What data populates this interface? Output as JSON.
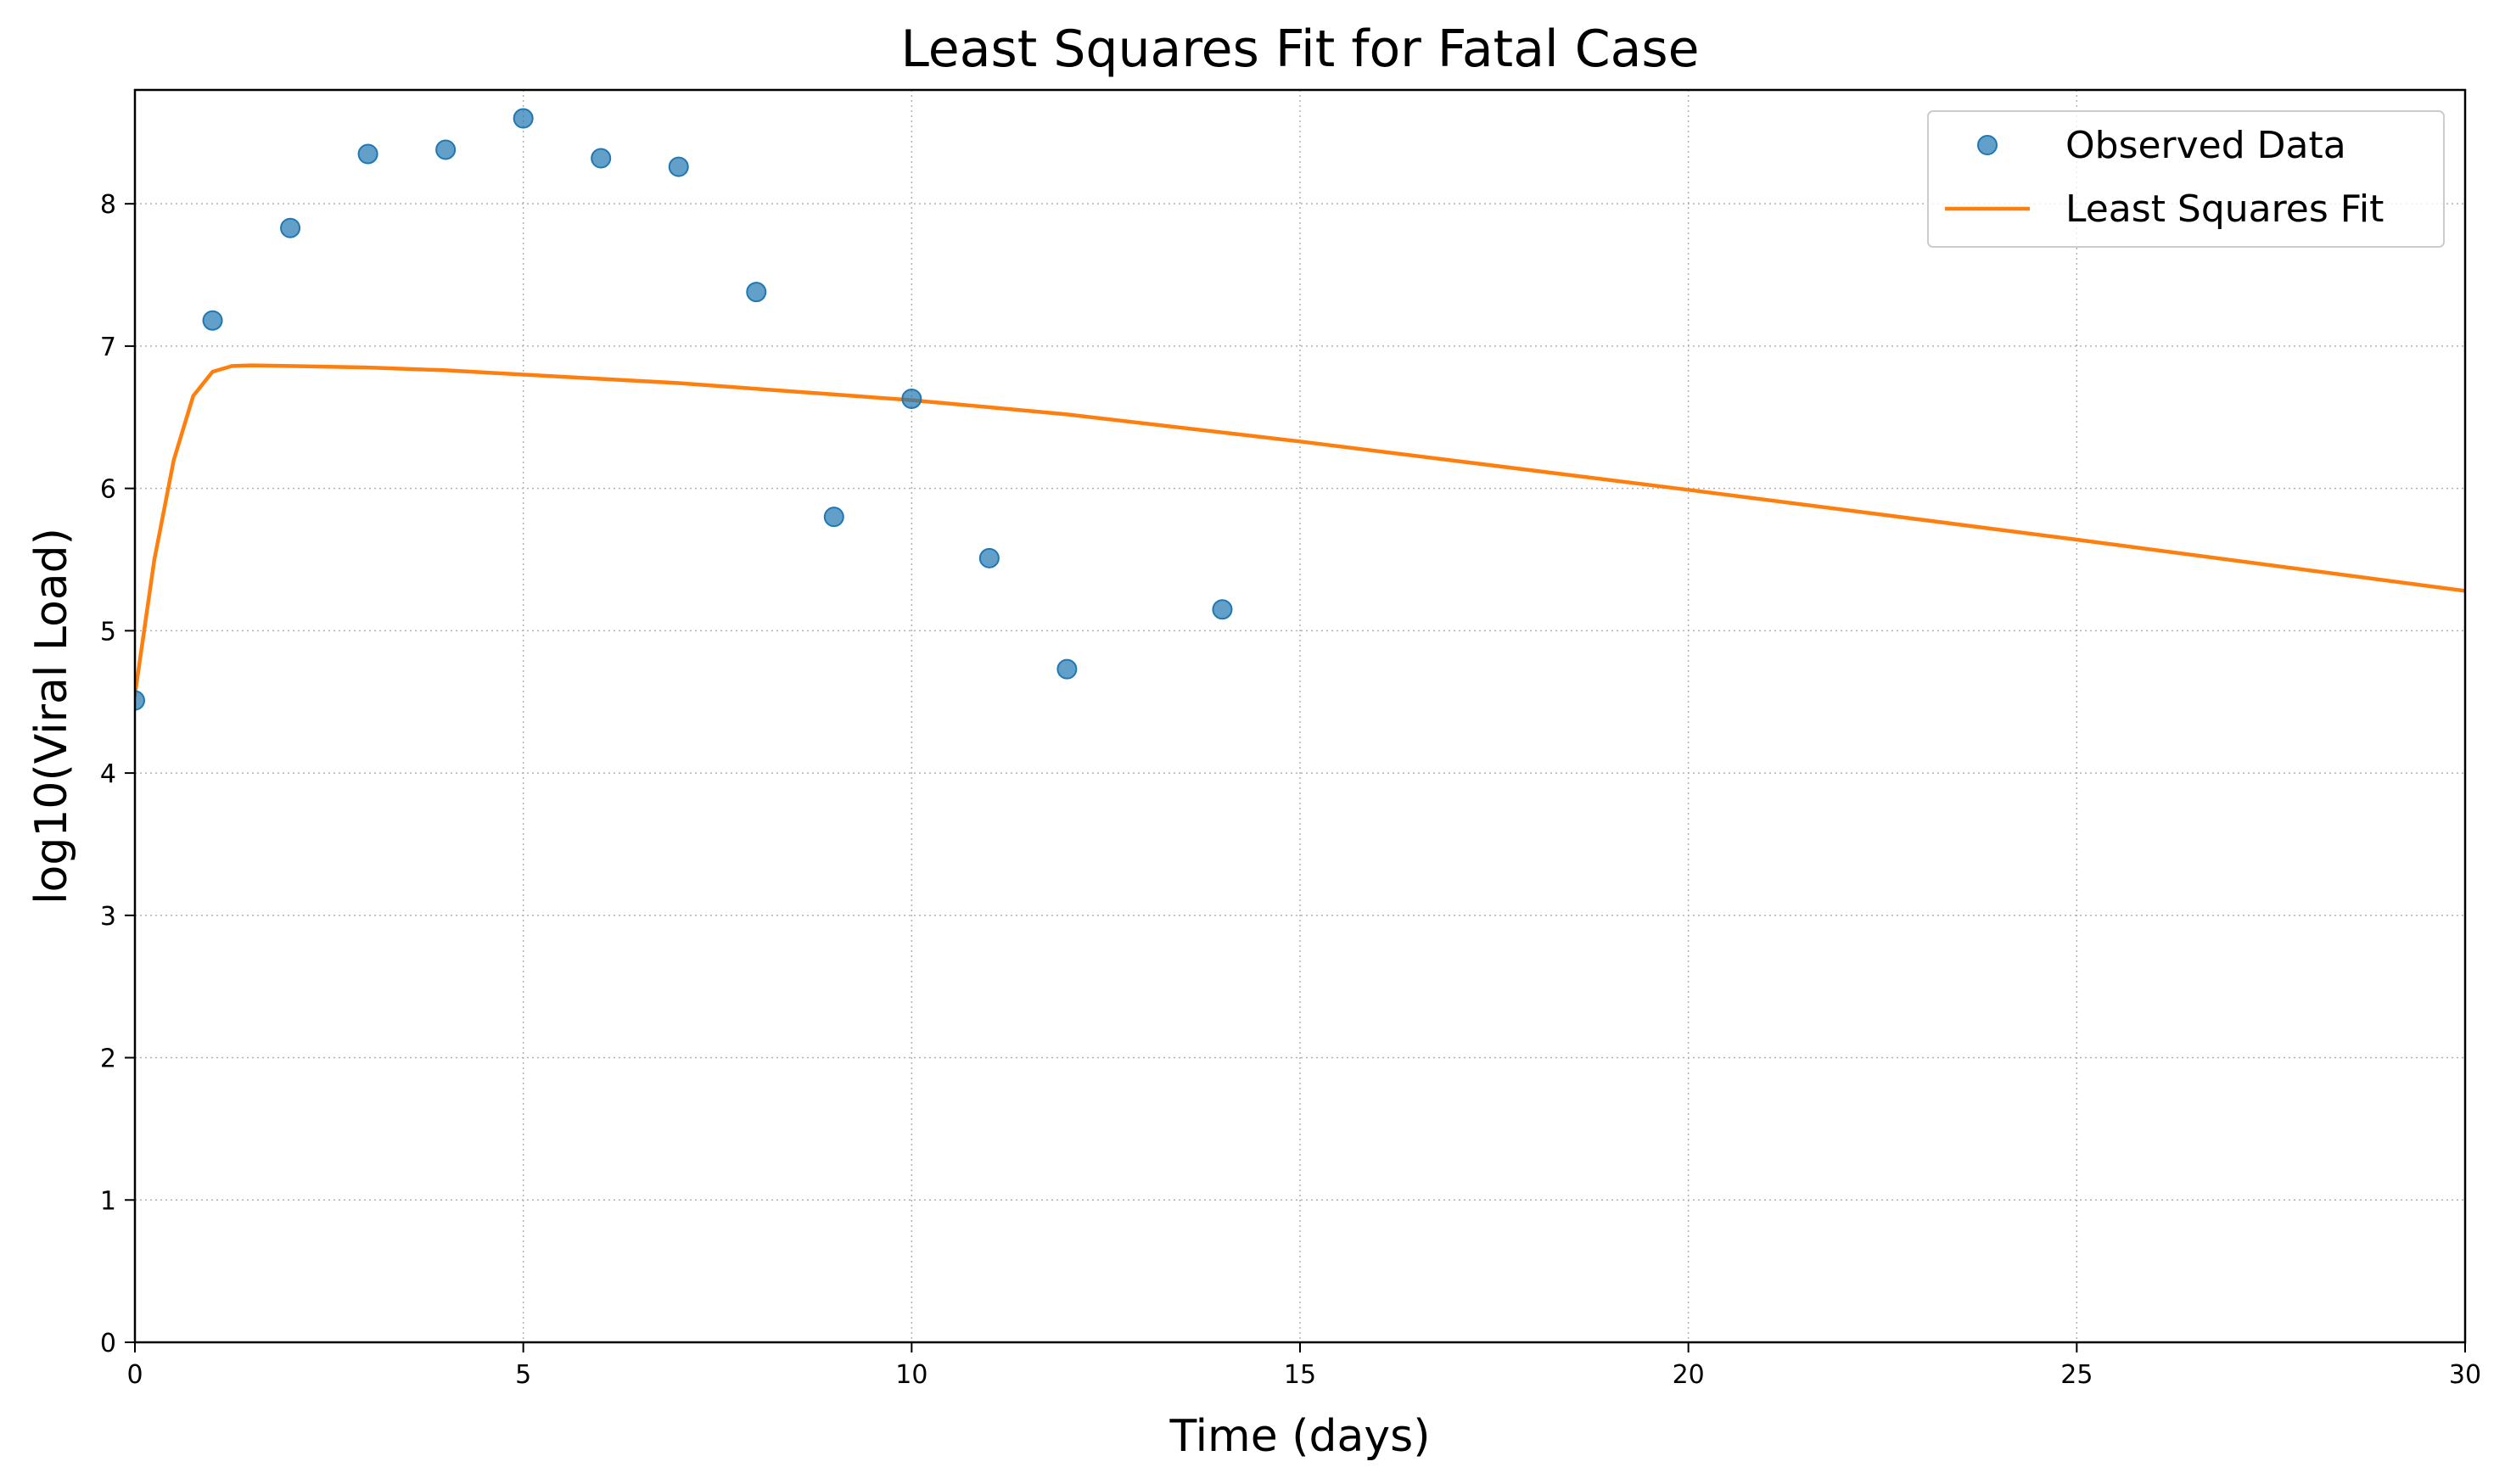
{
  "chart_data": {
    "type": "scatter",
    "title": "Least Squares Fit for Fatal Case",
    "xlabel": "Time (days)",
    "ylabel": "log10(Viral Load)",
    "xlim": [
      0,
      30
    ],
    "ylim": [
      0,
      8.8
    ],
    "xticks": [
      "0",
      "5",
      "10",
      "15",
      "20",
      "25",
      "30"
    ],
    "yticks": [
      "0",
      "1",
      "2",
      "3",
      "4",
      "5",
      "6",
      "7",
      "8"
    ],
    "grid": true,
    "legend_position": "top-right",
    "series": [
      {
        "name": "Observed Data",
        "type": "scatter",
        "color": "#1f77b4",
        "x": [
          0,
          1,
          2,
          3,
          4,
          5,
          6,
          7,
          8,
          9,
          10,
          11,
          12,
          14
        ],
        "y": [
          4.51,
          7.18,
          7.83,
          8.35,
          8.38,
          8.6,
          8.32,
          8.26,
          7.38,
          5.8,
          6.63,
          5.51,
          4.73,
          5.15
        ]
      },
      {
        "name": "Least Squares Fit",
        "type": "line",
        "color": "#ff7f0e",
        "x": [
          0,
          0.25,
          0.5,
          0.75,
          1,
          1.25,
          1.5,
          2,
          3,
          4,
          5,
          6,
          7,
          8,
          9,
          10,
          12,
          15,
          20,
          25,
          30
        ],
        "y": [
          4.55,
          5.5,
          6.2,
          6.65,
          6.82,
          6.86,
          6.865,
          6.86,
          6.85,
          6.83,
          6.8,
          6.77,
          6.74,
          6.7,
          6.66,
          6.62,
          6.52,
          6.33,
          5.99,
          5.64,
          5.28
        ]
      }
    ]
  }
}
